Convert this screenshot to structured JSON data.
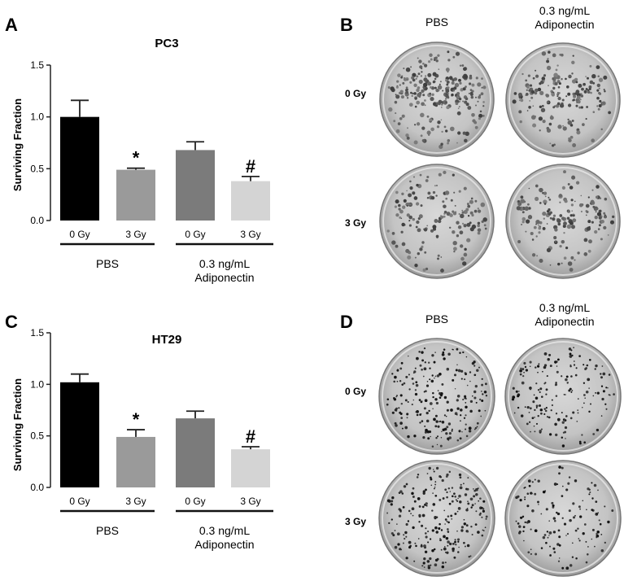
{
  "panels": {
    "a": "A",
    "b": "B",
    "c": "C",
    "d": "D"
  },
  "chart_data": [
    {
      "type": "bar",
      "title": "PC3",
      "ylabel": "Surviving Fraction",
      "xlabel": "",
      "ylim": [
        0,
        1.5
      ],
      "yticks": [
        "0.0",
        "0.5",
        "1.0",
        "1.5"
      ],
      "categories": [
        "0 Gy",
        "3 Gy",
        "0 Gy",
        "3 Gy"
      ],
      "values": [
        1.0,
        0.49,
        0.68,
        0.38
      ],
      "errors": [
        0.16,
        0.015,
        0.08,
        0.045
      ],
      "colors": [
        "#000000",
        "#9a9a9a",
        "#7b7b7b",
        "#d4d4d4"
      ],
      "groups": [
        {
          "label_lines": [
            "PBS"
          ]
        },
        {
          "label_lines": [
            "0.3 ng/mL",
            "Adiponectin"
          ]
        }
      ],
      "annotations": [
        "",
        "*",
        "",
        "#"
      ],
      "grid": false
    },
    {
      "type": "bar",
      "title": "HT29",
      "ylabel": "Surviving Fraction",
      "xlabel": "",
      "ylim": [
        0,
        1.5
      ],
      "yticks": [
        "0.0",
        "0.5",
        "1.0",
        "1.5"
      ],
      "categories": [
        "0 Gy",
        "3 Gy",
        "0 Gy",
        "3 Gy"
      ],
      "values": [
        1.02,
        0.49,
        0.67,
        0.37
      ],
      "errors": [
        0.08,
        0.07,
        0.07,
        0.025
      ],
      "colors": [
        "#000000",
        "#9a9a9a",
        "#7b7b7b",
        "#d4d4d4"
      ],
      "groups": [
        {
          "label_lines": [
            "PBS"
          ]
        },
        {
          "label_lines": [
            "0.3 ng/mL",
            "Adiponectin"
          ]
        }
      ],
      "annotations": [
        "",
        "*",
        "",
        "#"
      ],
      "grid": false
    }
  ],
  "photo_panels": [
    {
      "columns": [
        [
          "PBS"
        ],
        [
          "0.3 ng/mL",
          "Adiponectin"
        ]
      ],
      "rows": [
        "0 Gy",
        "3 Gy"
      ]
    },
    {
      "columns": [
        [
          "PBS"
        ],
        [
          "0.3 ng/mL",
          "Adiponectin"
        ]
      ],
      "rows": [
        "0 Gy",
        "3 Gy"
      ]
    }
  ]
}
